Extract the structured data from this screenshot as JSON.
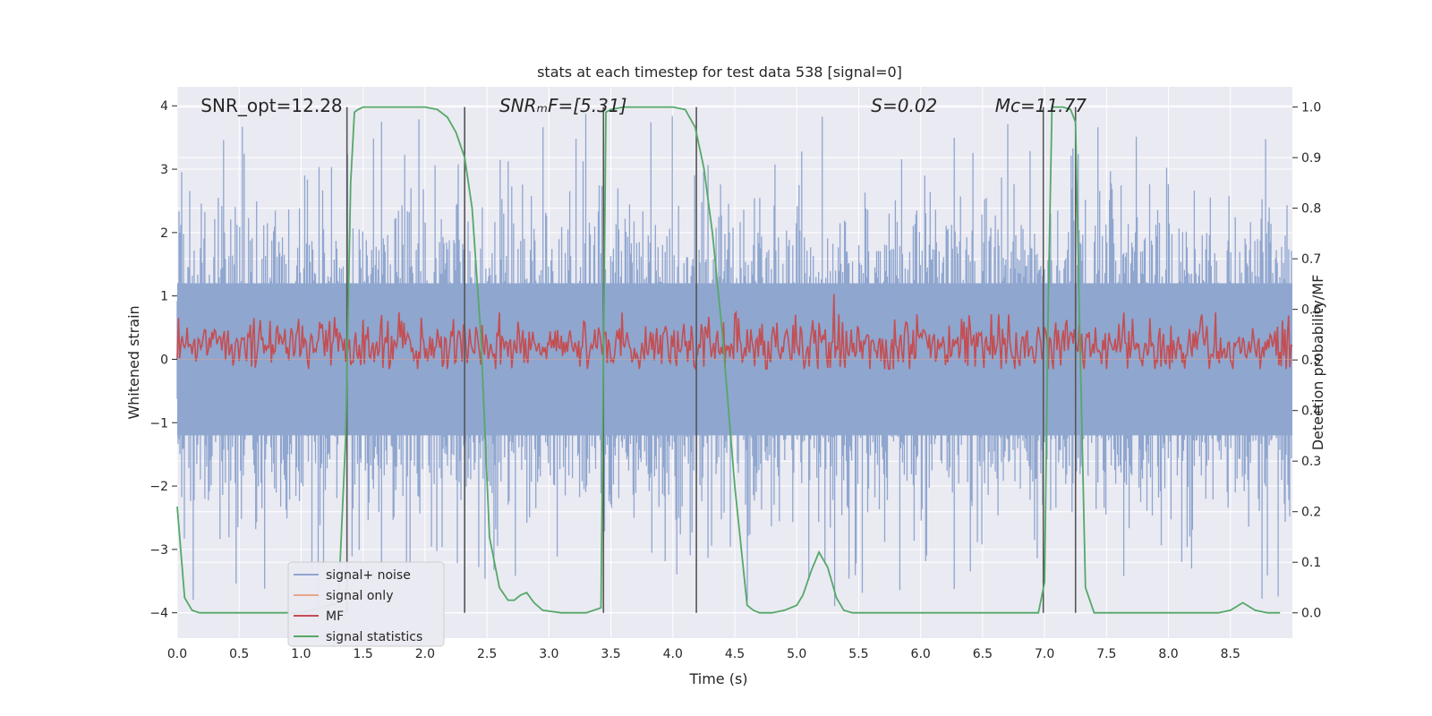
{
  "chart_data": {
    "type": "line",
    "title": "stats at each timestep for test data 538 [signal=0]",
    "xlabel": "Time (s)",
    "ylabel": "Whitened strain",
    "ylabel_right": "Detection probability/MF",
    "xlim": [
      0.0,
      9.0
    ],
    "ylim": [
      -4.4,
      4.3
    ],
    "ylim_right": [
      -0.05,
      1.04
    ],
    "x_ticks": [
      0.0,
      0.5,
      1.0,
      1.5,
      2.0,
      2.5,
      3.0,
      3.5,
      4.0,
      4.5,
      5.0,
      5.5,
      6.0,
      6.5,
      7.0,
      7.5,
      8.0,
      8.5
    ],
    "x_tick_labels": [
      "0.0",
      "0.5",
      "1.0",
      "1.5",
      "2.0",
      "2.5",
      "3.0",
      "3.5",
      "4.0",
      "4.5",
      "5.0",
      "5.5",
      "6.0",
      "6.5",
      "7.0",
      "7.5",
      "8.0",
      "8.5"
    ],
    "y_ticks": [
      4,
      3,
      2,
      1,
      0,
      -1,
      -2,
      -3,
      -4
    ],
    "y_tick_labels": [
      "4",
      "3",
      "2",
      "1",
      "0",
      "−1",
      "−2",
      "−3",
      "−4"
    ],
    "y_right_ticks": [
      1.0,
      0.9,
      0.8,
      0.7,
      0.6,
      0.5,
      0.4,
      0.3,
      0.2,
      0.1,
      0.0
    ],
    "y_right_tick_labels": [
      "1.0",
      "0.9",
      "0.8",
      "0.7",
      "0.6",
      "0.5",
      "0.4",
      "0.3",
      "0.2",
      "0.1",
      "0.0"
    ],
    "annotations": [
      {
        "name": "snr-opt",
        "text": "SNR_opt=12.28",
        "italic": false,
        "x": 0.19,
        "y": 4.0
      },
      {
        "name": "snr-mf",
        "text": "SNRₘF=[5.31]",
        "italic": true,
        "x": 2.6,
        "y": 4.0
      },
      {
        "name": "s-value",
        "text": "S=0.02",
        "italic": true,
        "x": 5.6,
        "y": 4.0
      },
      {
        "name": "mc-value",
        "text": "Mc=11.77",
        "italic": true,
        "x": 6.6,
        "y": 4.0
      }
    ],
    "vertical_lines": [
      1.37,
      2.32,
      3.44,
      4.19,
      6.99,
      7.25
    ],
    "series": [
      {
        "name": "signal+ noise",
        "axis": "left",
        "color": "#8fa6cf",
        "style": "noise-band",
        "typical_peak": 1.6,
        "max_peak": 3.9
      },
      {
        "name": "signal only",
        "axis": "left",
        "color": "#e8a58a",
        "style": "flat",
        "values": [
          0.0
        ]
      },
      {
        "name": "MF",
        "axis": "right",
        "color": "#c44e52",
        "style": "noise-band",
        "center": 0.53,
        "amplitude": 0.04,
        "spike": {
          "x": 5.3,
          "y": 0.63
        }
      },
      {
        "name": "signal statistics",
        "axis": "right",
        "color": "#55a868",
        "style": "line",
        "x": [
          0.0,
          0.06,
          0.12,
          0.18,
          0.25,
          0.5,
          1.0,
          1.3,
          1.36,
          1.4,
          1.43,
          1.46,
          1.5,
          1.7,
          2.0,
          2.1,
          2.18,
          2.25,
          2.32,
          2.38,
          2.45,
          2.52,
          2.6,
          2.67,
          2.72,
          2.77,
          2.82,
          2.88,
          2.95,
          3.1,
          3.3,
          3.42,
          3.46,
          3.5,
          3.6,
          4.0,
          4.1,
          4.18,
          4.25,
          4.32,
          4.4,
          4.5,
          4.6,
          4.65,
          4.7,
          4.8,
          4.9,
          5.0,
          5.05,
          5.12,
          5.18,
          5.25,
          5.32,
          5.38,
          5.45,
          5.5,
          5.6,
          6.0,
          6.5,
          6.95,
          7.0,
          7.03,
          7.06,
          7.15,
          7.21,
          7.25,
          7.28,
          7.33,
          7.4,
          7.5,
          8.0,
          8.4,
          8.5,
          8.6,
          8.7,
          8.8,
          8.9
        ],
        "y": [
          0.21,
          0.03,
          0.005,
          0.0,
          0.0,
          0.0,
          0.0,
          0.02,
          0.35,
          0.85,
          0.99,
          0.995,
          1.0,
          1.0,
          1.0,
          0.995,
          0.98,
          0.95,
          0.9,
          0.8,
          0.55,
          0.15,
          0.05,
          0.025,
          0.025,
          0.035,
          0.04,
          0.02,
          0.005,
          0.0,
          0.0,
          0.01,
          0.99,
          0.995,
          1.0,
          1.0,
          0.995,
          0.96,
          0.88,
          0.75,
          0.55,
          0.25,
          0.015,
          0.005,
          0.0,
          0.0,
          0.005,
          0.015,
          0.035,
          0.085,
          0.12,
          0.09,
          0.03,
          0.005,
          0.0,
          0.0,
          0.0,
          0.0,
          0.0,
          0.0,
          0.06,
          0.62,
          1.0,
          1.0,
          0.995,
          0.97,
          0.6,
          0.05,
          0.0,
          0.0,
          0.0,
          0.0,
          0.005,
          0.02,
          0.005,
          0.0,
          0.0
        ]
      }
    ],
    "legend": {
      "placement": "lower-left",
      "entries": [
        {
          "label": "signal+ noise",
          "color": "#8fa6cf"
        },
        {
          "label": "signal only",
          "color": "#e8a58a"
        },
        {
          "label": "MF",
          "color": "#c44e52"
        },
        {
          "label": "signal statistics",
          "color": "#55a868"
        }
      ]
    },
    "colors": {
      "plot_background": "#eaeaf2",
      "grid": "#ffffff",
      "vline": "#555555"
    }
  }
}
